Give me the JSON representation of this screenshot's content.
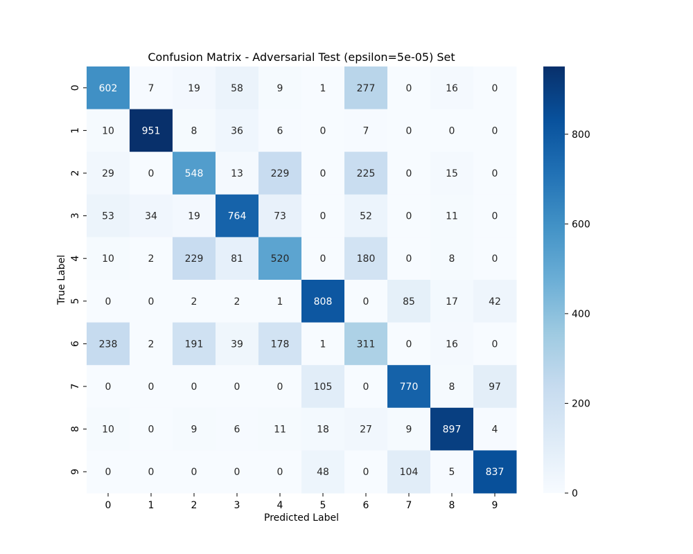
{
  "chart_data": {
    "type": "heatmap",
    "title": "Confusion Matrix - Adversarial Test (epsilon=5e-05) Set",
    "xlabel": "Predicted Label",
    "ylabel": "True Label",
    "x_categories": [
      "0",
      "1",
      "2",
      "3",
      "4",
      "5",
      "6",
      "7",
      "8",
      "9"
    ],
    "y_categories": [
      "0",
      "1",
      "2",
      "3",
      "4",
      "5",
      "6",
      "7",
      "8",
      "9"
    ],
    "values": [
      [
        602,
        7,
        19,
        58,
        9,
        1,
        277,
        0,
        16,
        0
      ],
      [
        10,
        951,
        8,
        36,
        6,
        0,
        7,
        0,
        0,
        0
      ],
      [
        29,
        0,
        548,
        13,
        229,
        0,
        225,
        0,
        15,
        0
      ],
      [
        53,
        34,
        19,
        764,
        73,
        0,
        52,
        0,
        11,
        0
      ],
      [
        10,
        2,
        229,
        81,
        520,
        0,
        180,
        0,
        8,
        0
      ],
      [
        0,
        0,
        2,
        2,
        1,
        808,
        0,
        85,
        17,
        42
      ],
      [
        238,
        2,
        191,
        39,
        178,
        1,
        311,
        0,
        16,
        0
      ],
      [
        0,
        0,
        0,
        0,
        0,
        105,
        0,
        770,
        8,
        97
      ],
      [
        10,
        0,
        9,
        6,
        11,
        18,
        27,
        9,
        897,
        4
      ],
      [
        0,
        0,
        0,
        0,
        0,
        48,
        0,
        104,
        5,
        837
      ]
    ],
    "colorbar": {
      "min": 0,
      "max": 951,
      "ticks": [
        0,
        200,
        400,
        600,
        800
      ],
      "colormap": "Blues"
    }
  }
}
